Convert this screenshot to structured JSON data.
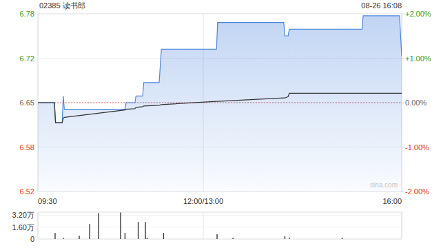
{
  "chart_data": [
    {
      "type": "line",
      "title": "02385 读书郎",
      "subtitle": "08-26 16:08",
      "watermark": "sina.com",
      "x": [
        0,
        15,
        16,
        22,
        23,
        24,
        79,
        80,
        88,
        89,
        95,
        96,
        110,
        112,
        162,
        163,
        223,
        224,
        227,
        228,
        294,
        295,
        328,
        330
      ],
      "xlim": [
        0,
        330
      ],
      "xticks": [
        {
          "value": 0,
          "label": "09:30"
        },
        {
          "value": 150,
          "label": "12:00/13:00"
        },
        {
          "value": 330,
          "label": "16:00"
        }
      ],
      "ylim": [
        6.517,
        6.783
      ],
      "yticks": [
        {
          "value": 6.783,
          "label": "6.78"
        },
        {
          "value": 6.7165,
          "label": "6.72"
        },
        6.65,
        {
          "value": 6.5835,
          "label": "6.58"
        },
        {
          "value": 6.517,
          "label": "6.52"
        }
      ],
      "y2lim": [
        -2,
        2
      ],
      "y2ticks": [
        {
          "value": 2,
          "label": "+2.00%"
        },
        {
          "value": 1,
          "label": "+1.00%"
        },
        {
          "value": 0,
          "label": "0.00%"
        },
        {
          "value": -1,
          "label": "-1.00%"
        },
        {
          "value": -2,
          "label": "-2.00%"
        }
      ],
      "baseline": 6.65,
      "grid": true,
      "series": [
        {
          "type": "area",
          "color": "#4d86dd",
          "values": [
            6.65,
            6.65,
            6.62,
            6.62,
            6.66,
            6.64,
            6.64,
            6.65,
            6.65,
            6.66,
            6.66,
            6.68,
            6.68,
            6.73,
            6.73,
            6.77,
            6.77,
            6.75,
            6.75,
            6.76,
            6.76,
            6.78,
            6.78,
            6.72
          ]
        },
        {
          "type": "line",
          "color": "#333333",
          "values": [
            6.65,
            6.65,
            6.62,
            6.62,
            6.627,
            6.628,
            6.639,
            6.64,
            6.641,
            6.643,
            6.644,
            6.645,
            6.646,
            6.647,
            6.652,
            6.652,
            6.657,
            6.657,
            6.659,
            6.664,
            6.664,
            6.664,
            6.664,
            6.664
          ]
        }
      ]
    },
    {
      "type": "bar",
      "x": [
        15.6,
        23,
        37.5,
        47,
        55,
        75,
        79,
        91,
        97.5,
        99,
        114,
        162.5,
        177,
        224,
        228,
        276
      ],
      "values": [
        8200,
        1800,
        4600,
        20100,
        34700,
        35600,
        8200,
        22900,
        22900,
        1800,
        8200,
        6400,
        1800,
        3700,
        1800,
        1800
      ],
      "color": "#444444",
      "xlim": [
        0,
        330
      ],
      "ylim": [
        0,
        36000
      ],
      "yticks": [
        {
          "value": 32000,
          "label": "3.20万"
        },
        {
          "value": 16000,
          "label": "1.60万"
        },
        0
      ],
      "grid": true,
      "tick_labels": "y"
    }
  ]
}
